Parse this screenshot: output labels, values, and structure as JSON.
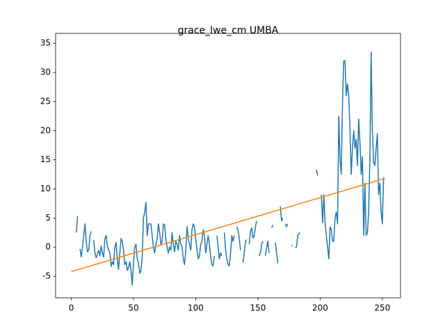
{
  "chart_data": {
    "type": "line",
    "title": "grace_lwe_cm UMBA",
    "series": [
      {
        "color": "#1f77b4",
        "x": [
          4,
          5,
          6,
          7,
          8,
          9,
          10,
          11,
          12,
          13,
          14,
          15,
          16,
          17,
          18,
          19,
          20,
          21,
          22,
          23,
          24,
          25,
          26,
          27,
          28,
          29,
          30,
          31,
          32,
          33,
          34,
          35,
          36,
          37,
          38,
          39,
          40,
          41,
          42,
          43,
          44,
          45,
          46,
          47,
          48,
          49,
          50,
          51,
          52,
          53,
          54,
          55,
          56,
          57,
          58,
          59,
          60,
          61,
          62,
          63,
          64,
          65,
          66,
          67,
          68,
          69,
          70,
          71,
          72,
          73,
          74,
          75,
          76,
          77,
          78,
          79,
          80,
          81,
          82,
          83,
          84,
          85,
          86,
          87,
          88,
          89,
          90,
          91,
          92,
          93,
          94,
          95,
          96,
          97,
          98,
          99,
          100,
          101,
          102,
          103,
          104,
          105,
          106,
          107,
          108,
          109,
          110,
          111,
          112,
          113,
          114,
          115,
          116,
          117,
          118,
          119,
          120,
          121,
          122,
          123,
          124,
          125,
          126,
          127,
          128,
          129,
          130,
          131,
          132,
          133,
          134,
          135,
          136,
          137,
          138,
          139,
          140,
          141,
          142,
          143,
          144,
          145,
          146,
          147,
          148,
          149,
          150,
          151,
          152,
          153,
          154,
          155,
          156,
          157,
          158,
          159,
          160,
          161,
          162,
          163,
          164,
          165,
          166,
          167,
          168,
          169,
          170,
          171,
          172,
          173,
          174,
          175,
          176,
          177,
          178,
          179,
          180,
          181,
          182,
          183,
          184,
          185,
          186,
          187,
          188,
          189,
          190,
          191,
          192,
          193,
          194,
          195,
          196,
          197,
          198,
          199,
          200,
          201,
          202,
          203,
          204,
          205,
          206,
          207,
          208,
          209,
          210,
          211,
          212,
          213,
          214,
          215,
          216,
          217,
          218,
          219,
          220,
          221,
          222,
          223,
          224,
          225,
          226,
          227,
          228,
          229,
          230,
          231,
          232,
          233,
          234,
          235,
          236,
          237,
          238,
          239,
          240,
          241,
          242,
          243,
          244,
          245,
          246,
          247,
          248,
          249,
          250,
          251
        ],
        "values": [
          2.5,
          5.3,
          null,
          -0.3,
          -1.7,
          0,
          2,
          4,
          1,
          -0.8,
          -0.5,
          2,
          2.7,
          null,
          1.2,
          -1,
          -1.8,
          -1.2,
          -0.5,
          -1.5,
          0.2,
          -1,
          -1.7,
          1.5,
          2,
          0.2,
          -0.5,
          -1,
          -3.3,
          -2.5,
          -3,
          0,
          0.8,
          -2,
          -3.8,
          -1,
          1.5,
          1,
          -0.5,
          -3,
          -2.5,
          -4,
          -3.5,
          -2.5,
          -4,
          -6.5,
          -2.8,
          0,
          0.5,
          -2,
          -2.8,
          -4.5,
          -4,
          -1.5,
          5,
          6,
          7.7,
          2,
          4,
          4,
          4,
          2,
          0,
          -1,
          0.5,
          1.5,
          4,
          2.5,
          0.5,
          1,
          4,
          3.8,
          1.5,
          0,
          -1,
          0,
          -0.5,
          2.5,
          0.5,
          -0.8,
          1,
          0.5,
          -0.5,
          2,
          0.5,
          0,
          -2,
          -3,
          -0.5,
          3.5,
          1.5,
          0.5,
          -0.5,
          3,
          4,
          3.5,
          1.5,
          -0.5,
          -2,
          -1.5,
          0.5,
          1,
          3,
          2,
          -1,
          0.5,
          2,
          0.5,
          -1.5,
          -3,
          -3.2,
          -1.5,
          null,
          2,
          0,
          -2,
          -1,
          -1.5,
          null,
          2.5,
          -0.5,
          -2,
          -3,
          -3.2,
          -1,
          2,
          1,
          2,
          null,
          3.5,
          3,
          1.5,
          -0.5,
          null,
          -2.7,
          -1,
          1,
          1.3,
          null,
          0.5,
          2.7,
          3.3,
          1.5,
          2,
          3.5,
          4.5,
          null,
          -1.5,
          -1,
          0.5,
          1,
          null,
          -1.5,
          0,
          1,
          -1,
          null,
          3.3,
          3.8,
          null,
          0.8,
          -1,
          -2.8,
          null,
          7,
          4.5,
          5,
          null,
          4,
          3.5,
          4,
          null,
          null,
          0.3,
          0.2,
          null,
          0,
          0,
          2,
          2.3,
          2.5,
          null,
          null,
          null,
          null,
          null,
          null,
          null,
          null,
          null,
          null,
          null,
          null,
          13.3,
          12.3,
          null,
          null,
          9,
          4.2,
          9,
          4,
          2,
          0,
          -2,
          3.5,
          3,
          1,
          1,
          5,
          6,
          4,
          22.5,
          15,
          12.5,
          25,
          32,
          32,
          26,
          28,
          26,
          20,
          12.5,
          17,
          20,
          17,
          18.5,
          14,
          22,
          18,
          12.5,
          15.5,
          2,
          11,
          2,
          2.5,
          6,
          15,
          33.5,
          20,
          14.5,
          14,
          17,
          19.5,
          9,
          11,
          6,
          4,
          12
        ]
      },
      {
        "color": "#ff7f0e",
        "x": [
          0,
          252
        ],
        "values": [
          -4.2,
          11.8
        ]
      }
    ],
    "xlim": [
      -12.6,
      264.6
    ],
    "xticks": [
      0,
      50,
      100,
      150,
      200,
      250
    ],
    "ylim": [
      -8.7,
      36.7
    ],
    "yticks": [
      -5,
      0,
      5,
      10,
      15,
      20,
      25,
      30,
      35
    ]
  }
}
